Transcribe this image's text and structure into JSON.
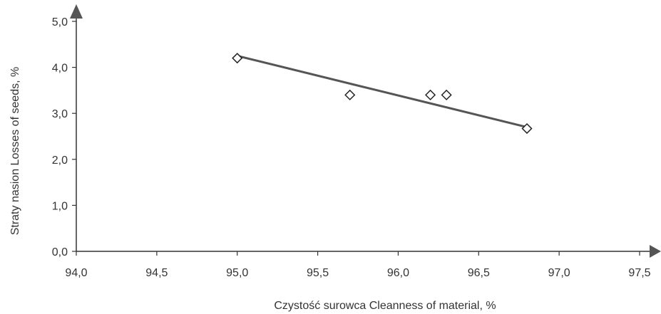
{
  "chart_data": {
    "type": "scatter",
    "xlabel": "Czystość surowca Cleanness of material, %",
    "ylabel": "Straty nasion Losses of seeds, %",
    "xlim": [
      94.0,
      97.5
    ],
    "ylim": [
      0.0,
      5.0
    ],
    "x_ticks": [
      "94,0",
      "94,5",
      "95,0",
      "95,5",
      "96,0",
      "96,5",
      "97,0",
      "97,5"
    ],
    "y_ticks": [
      "0,0",
      "1,0",
      "2,0",
      "3,0",
      "4,0",
      "5,0"
    ],
    "series": [
      {
        "points": [
          {
            "x": 95.0,
            "y": 4.2
          },
          {
            "x": 95.7,
            "y": 3.4
          },
          {
            "x": 96.2,
            "y": 3.4
          },
          {
            "x": 96.3,
            "y": 3.4
          },
          {
            "x": 96.8,
            "y": 2.67
          }
        ],
        "marker": "diamond-open"
      }
    ],
    "trendline": {
      "type": "linear",
      "x_start": 95.0,
      "y_start": 4.25,
      "x_end": 96.8,
      "y_end": 2.7
    },
    "grid": false,
    "colors": {
      "axis": "#333333",
      "line": "#555555",
      "marker": "#222222"
    }
  }
}
